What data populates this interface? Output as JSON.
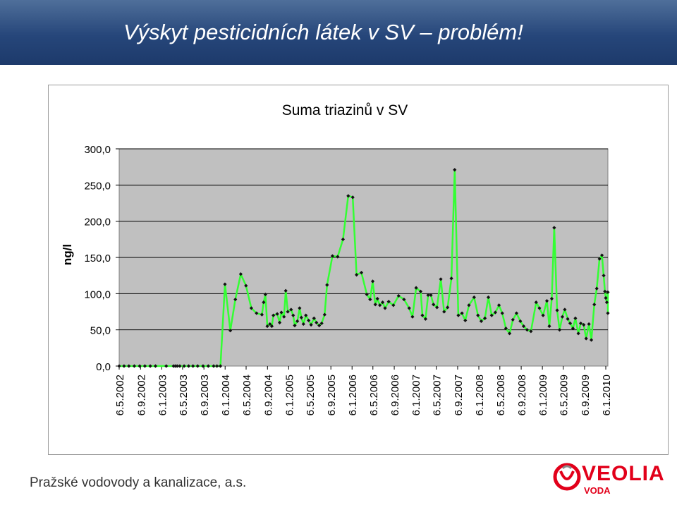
{
  "slide": {
    "title": "Výskyt pesticidních látek v SV – problém!",
    "footer": "Pražské vodovody a kanalizace, a.s.",
    "logo": {
      "word": "VEOLIA",
      "sub": "VODA",
      "color": "#e2001a",
      "icon": "veolia-logo-icon"
    },
    "header_colors": [
      "#4f6f9a",
      "#1d3a6b"
    ]
  },
  "chart_data": {
    "type": "line",
    "title": "Suma triazinů v SV",
    "ylabel": "ng/l",
    "xlabel": "",
    "ylim": [
      0,
      300
    ],
    "yticks": [
      "0,0",
      "50,0",
      "100,0",
      "150,0",
      "200,0",
      "250,0",
      "300,0"
    ],
    "ytick_values": [
      0,
      50,
      100,
      150,
      200,
      250,
      300
    ],
    "x_start": "2002-05-06",
    "x_end": "2010-01-06",
    "xticks": [
      {
        "date": "2002-05-06",
        "label": "6.5.2002"
      },
      {
        "date": "2002-09-06",
        "label": "6.9.2002"
      },
      {
        "date": "2003-01-06",
        "label": "6.1.2003"
      },
      {
        "date": "2003-05-06",
        "label": "6.5.2003"
      },
      {
        "date": "2003-09-06",
        "label": "6.9.2003"
      },
      {
        "date": "2004-01-06",
        "label": "6.1.2004"
      },
      {
        "date": "2004-05-06",
        "label": "6.5.2004"
      },
      {
        "date": "2004-09-06",
        "label": "6.9.2004"
      },
      {
        "date": "2005-01-06",
        "label": "6.1.2005"
      },
      {
        "date": "2005-05-06",
        "label": "6.5.2005"
      },
      {
        "date": "2005-09-06",
        "label": "6.9.2005"
      },
      {
        "date": "2006-01-06",
        "label": "6.1.2006"
      },
      {
        "date": "2006-05-06",
        "label": "6.5.2006"
      },
      {
        "date": "2006-09-06",
        "label": "6.9.2006"
      },
      {
        "date": "2007-01-06",
        "label": "6.1.2007"
      },
      {
        "date": "2007-05-06",
        "label": "6.5.2007"
      },
      {
        "date": "2007-09-06",
        "label": "6.9.2007"
      },
      {
        "date": "2008-01-06",
        "label": "6.1.2008"
      },
      {
        "date": "2008-05-06",
        "label": "6.5.2008"
      },
      {
        "date": "2008-09-06",
        "label": "6.9.2008"
      },
      {
        "date": "2009-01-06",
        "label": "6.1.2009"
      },
      {
        "date": "2009-05-06",
        "label": "6.5.2009"
      },
      {
        "date": "2009-09-06",
        "label": "6.9.2009"
      },
      {
        "date": "2010-01-06",
        "label": "6.1.2010"
      }
    ],
    "grid": true,
    "legend": "none",
    "plot_background": "#c0c0c0",
    "line_color": "#33ff33",
    "marker_color": "#111111",
    "series": [
      {
        "points": [
          [
            "2002-05-06",
            0
          ],
          [
            "2002-06-03",
            0
          ],
          [
            "2002-07-01",
            0
          ],
          [
            "2002-08-01",
            0
          ],
          [
            "2002-09-01",
            0
          ],
          [
            "2002-10-01",
            0
          ],
          [
            "2002-11-01",
            0
          ],
          [
            "2002-12-01",
            0
          ],
          [
            "2003-02-01",
            0
          ],
          [
            "2003-03-15",
            0
          ],
          [
            "2003-03-25",
            0
          ],
          [
            "2003-04-05",
            0
          ],
          [
            "2003-04-20",
            0
          ],
          [
            "2003-05-15",
            0
          ],
          [
            "2003-06-10",
            0
          ],
          [
            "2003-07-05",
            0
          ],
          [
            "2003-08-01",
            0
          ],
          [
            "2003-09-01",
            0
          ],
          [
            "2003-10-01",
            0
          ],
          [
            "2003-11-01",
            0
          ],
          [
            "2003-11-20",
            0
          ],
          [
            "2003-12-10",
            0
          ],
          [
            "2004-01-05",
            113
          ],
          [
            "2004-02-05",
            49
          ],
          [
            "2004-03-05",
            92
          ],
          [
            "2004-04-05",
            127
          ],
          [
            "2004-05-05",
            111
          ],
          [
            "2004-06-05",
            80
          ],
          [
            "2004-07-05",
            73
          ],
          [
            "2004-08-05",
            71
          ],
          [
            "2004-08-15",
            88
          ],
          [
            "2004-08-25",
            99
          ],
          [
            "2004-09-05",
            55
          ],
          [
            "2004-09-20",
            58
          ],
          [
            "2004-10-01",
            55
          ],
          [
            "2004-10-10",
            70
          ],
          [
            "2004-11-01",
            72
          ],
          [
            "2004-11-15",
            60
          ],
          [
            "2004-11-25",
            74
          ],
          [
            "2004-12-10",
            68
          ],
          [
            "2004-12-20",
            104
          ],
          [
            "2005-01-01",
            75
          ],
          [
            "2005-01-20",
            78
          ],
          [
            "2005-02-01",
            70
          ],
          [
            "2005-02-10",
            56
          ],
          [
            "2005-02-25",
            62
          ],
          [
            "2005-03-10",
            80
          ],
          [
            "2005-03-20",
            67
          ],
          [
            "2005-04-01",
            58
          ],
          [
            "2005-04-15",
            70
          ],
          [
            "2005-05-01",
            63
          ],
          [
            "2005-05-15",
            57
          ],
          [
            "2005-06-01",
            66
          ],
          [
            "2005-06-15",
            60
          ],
          [
            "2005-07-01",
            56
          ],
          [
            "2005-07-15",
            59
          ],
          [
            "2005-08-01",
            71
          ],
          [
            "2005-08-15",
            112
          ],
          [
            "2005-09-15",
            152
          ],
          [
            "2005-10-15",
            151
          ],
          [
            "2005-11-15",
            175
          ],
          [
            "2005-12-15",
            235
          ],
          [
            "2006-01-10",
            233
          ],
          [
            "2006-02-01",
            126
          ],
          [
            "2006-03-01",
            129
          ],
          [
            "2006-04-01",
            99
          ],
          [
            "2006-04-20",
            92
          ],
          [
            "2006-05-05",
            117
          ],
          [
            "2006-05-20",
            85
          ],
          [
            "2006-06-01",
            93
          ],
          [
            "2006-06-15",
            84
          ],
          [
            "2006-07-01",
            88
          ],
          [
            "2006-07-15",
            80
          ],
          [
            "2006-08-05",
            89
          ],
          [
            "2006-09-01",
            84
          ],
          [
            "2006-10-01",
            97
          ],
          [
            "2006-11-01",
            92
          ],
          [
            "2006-12-01",
            80
          ],
          [
            "2006-12-20",
            68
          ],
          [
            "2007-01-10",
            108
          ],
          [
            "2007-02-05",
            103
          ],
          [
            "2007-02-15",
            70
          ],
          [
            "2007-03-05",
            65
          ],
          [
            "2007-03-20",
            98
          ],
          [
            "2007-04-05",
            98
          ],
          [
            "2007-04-20",
            85
          ],
          [
            "2007-05-10",
            81
          ],
          [
            "2007-06-01",
            120
          ],
          [
            "2007-06-20",
            75
          ],
          [
            "2007-07-10",
            81
          ],
          [
            "2007-08-01",
            121
          ],
          [
            "2007-08-20",
            271
          ],
          [
            "2007-09-10",
            70
          ],
          [
            "2007-10-01",
            73
          ],
          [
            "2007-10-20",
            63
          ],
          [
            "2007-11-10",
            84
          ],
          [
            "2007-12-10",
            95
          ],
          [
            "2008-01-01",
            70
          ],
          [
            "2008-01-20",
            62
          ],
          [
            "2008-02-10",
            66
          ],
          [
            "2008-03-01",
            95
          ],
          [
            "2008-03-20",
            70
          ],
          [
            "2008-04-10",
            74
          ],
          [
            "2008-05-01",
            84
          ],
          [
            "2008-05-20",
            73
          ],
          [
            "2008-06-10",
            52
          ],
          [
            "2008-07-01",
            45
          ],
          [
            "2008-07-20",
            64
          ],
          [
            "2008-08-10",
            73
          ],
          [
            "2008-09-01",
            62
          ],
          [
            "2008-09-20",
            55
          ],
          [
            "2008-10-10",
            50
          ],
          [
            "2008-11-01",
            48
          ],
          [
            "2008-12-01",
            88
          ],
          [
            "2008-12-20",
            80
          ],
          [
            "2009-01-10",
            70
          ],
          [
            "2009-02-01",
            90
          ],
          [
            "2009-02-15",
            55
          ],
          [
            "2009-03-01",
            93
          ],
          [
            "2009-03-15",
            191
          ],
          [
            "2009-04-01",
            77
          ],
          [
            "2009-04-15",
            50
          ],
          [
            "2009-05-01",
            68
          ],
          [
            "2009-05-15",
            78
          ],
          [
            "2009-06-01",
            65
          ],
          [
            "2009-06-15",
            59
          ],
          [
            "2009-07-01",
            52
          ],
          [
            "2009-07-15",
            66
          ],
          [
            "2009-08-01",
            45
          ],
          [
            "2009-08-15",
            59
          ],
          [
            "2009-09-01",
            57
          ],
          [
            "2009-09-15",
            38
          ],
          [
            "2009-10-01",
            58
          ],
          [
            "2009-10-15",
            36
          ],
          [
            "2009-11-01",
            85
          ],
          [
            "2009-11-15",
            107
          ],
          [
            "2009-12-01",
            148
          ],
          [
            "2009-12-15",
            153
          ],
          [
            "2009-12-25",
            125
          ],
          [
            "2010-01-01",
            103
          ],
          [
            "2010-01-06",
            94
          ],
          [
            "2010-01-12",
            88
          ],
          [
            "2010-01-18",
            102
          ],
          [
            "2010-01-25",
            73
          ]
        ]
      }
    ]
  }
}
